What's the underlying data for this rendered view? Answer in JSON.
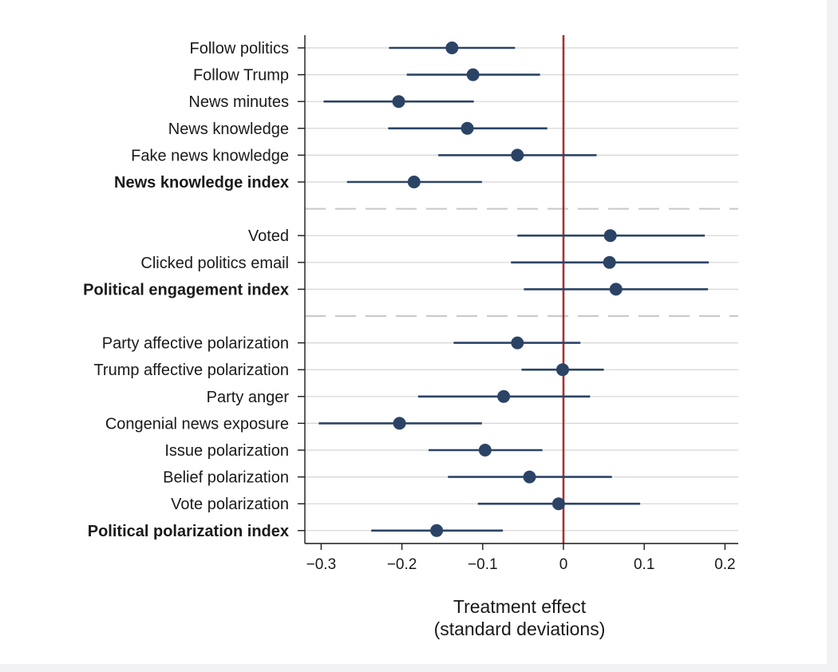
{
  "chart_data": {
    "type": "scatter",
    "subtype": "coefficient-plot",
    "xlabel_line1": "Treatment effect",
    "xlabel_line2": "(standard deviations)",
    "xlim": [
      -0.32,
      0.22
    ],
    "xticks": [
      -0.3,
      -0.2,
      -0.1,
      0,
      0.1,
      0.2
    ],
    "xtick_labels": [
      "−0.3",
      "−0.2",
      "−0.1",
      "0",
      "0.1",
      "0.2"
    ],
    "reference_line": {
      "x": 0,
      "color": "#a83232"
    },
    "point_color": "#2b4466",
    "grid": "horizontal",
    "groups": [
      {
        "items": [
          {
            "label": "Follow politics",
            "estimate": -0.138,
            "ci_low": -0.216,
            "ci_high": -0.06,
            "bold": false
          },
          {
            "label": "Follow Trump",
            "estimate": -0.112,
            "ci_low": -0.194,
            "ci_high": -0.029,
            "bold": false
          },
          {
            "label": "News minutes",
            "estimate": -0.204,
            "ci_low": -0.297,
            "ci_high": -0.111,
            "bold": false
          },
          {
            "label": "News knowledge",
            "estimate": -0.119,
            "ci_low": -0.217,
            "ci_high": -0.02,
            "bold": false
          },
          {
            "label": "Fake news knowledge",
            "estimate": -0.057,
            "ci_low": -0.155,
            "ci_high": 0.041,
            "bold": false
          },
          {
            "label": "News knowledge index",
            "estimate": -0.185,
            "ci_low": -0.268,
            "ci_high": -0.101,
            "bold": true
          }
        ]
      },
      {
        "items": [
          {
            "label": "Voted",
            "estimate": 0.058,
            "ci_low": -0.057,
            "ci_high": 0.175,
            "bold": false
          },
          {
            "label": "Clicked politics email",
            "estimate": 0.057,
            "ci_low": -0.065,
            "ci_high": 0.18,
            "bold": false
          },
          {
            "label": "Political engagement index",
            "estimate": 0.065,
            "ci_low": -0.049,
            "ci_high": 0.179,
            "bold": true
          }
        ]
      },
      {
        "items": [
          {
            "label": "Party affective polarization",
            "estimate": -0.057,
            "ci_low": -0.136,
            "ci_high": 0.021,
            "bold": false
          },
          {
            "label": "Trump affective polarization",
            "estimate": -0.001,
            "ci_low": -0.052,
            "ci_high": 0.05,
            "bold": false
          },
          {
            "label": "Party anger",
            "estimate": -0.074,
            "ci_low": -0.18,
            "ci_high": 0.033,
            "bold": false
          },
          {
            "label": "Congenial news exposure",
            "estimate": -0.203,
            "ci_low": -0.303,
            "ci_high": -0.101,
            "bold": false
          },
          {
            "label": "Issue polarization",
            "estimate": -0.097,
            "ci_low": -0.167,
            "ci_high": -0.026,
            "bold": false
          },
          {
            "label": "Belief polarization",
            "estimate": -0.042,
            "ci_low": -0.143,
            "ci_high": 0.06,
            "bold": false
          },
          {
            "label": "Vote polarization",
            "estimate": -0.006,
            "ci_low": -0.106,
            "ci_high": 0.095,
            "bold": false
          },
          {
            "label": "Political polarization index",
            "estimate": -0.157,
            "ci_low": -0.238,
            "ci_high": -0.075,
            "bold": true
          }
        ]
      }
    ]
  }
}
